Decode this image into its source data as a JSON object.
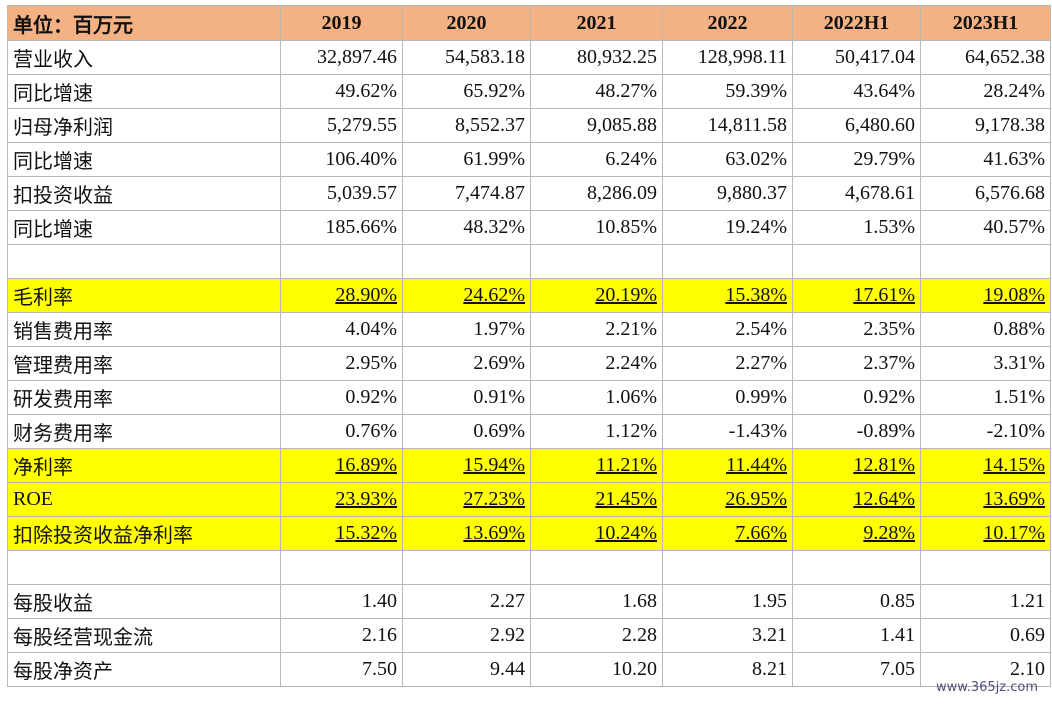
{
  "header": {
    "unit": "单位：百万元",
    "years": [
      "2019",
      "2020",
      "2021",
      "2022",
      "2022H1",
      "2023H1"
    ]
  },
  "rows": [
    {
      "label": "营业收入",
      "values": [
        "32,897.46",
        "54,583.18",
        "80,932.25",
        "128,998.11",
        "50,417.04",
        "64,652.38"
      ],
      "highlight": false
    },
    {
      "label": "同比增速",
      "values": [
        "49.62%",
        "65.92%",
        "48.27%",
        "59.39%",
        "43.64%",
        "28.24%"
      ],
      "highlight": false
    },
    {
      "label": "归母净利润",
      "values": [
        "5,279.55",
        "8,552.37",
        "9,085.88",
        "14,811.58",
        "6,480.60",
        "9,178.38"
      ],
      "highlight": false
    },
    {
      "label": "同比增速",
      "values": [
        "106.40%",
        "61.99%",
        "6.24%",
        "63.02%",
        "29.79%",
        "41.63%"
      ],
      "highlight": false
    },
    {
      "label": "扣投资收益",
      "values": [
        "5,039.57",
        "7,474.87",
        "8,286.09",
        "9,880.37",
        "4,678.61",
        "6,576.68"
      ],
      "highlight": false
    },
    {
      "label": "同比增速",
      "values": [
        "185.66%",
        "48.32%",
        "10.85%",
        "19.24%",
        "1.53%",
        "40.57%"
      ],
      "highlight": false
    },
    {
      "label": "",
      "values": [
        "",
        "",
        "",
        "",
        "",
        ""
      ],
      "highlight": false,
      "spacer": true
    },
    {
      "label": "毛利率",
      "values": [
        "28.90%",
        "24.62%",
        "20.19%",
        "15.38%",
        "17.61%",
        "19.08%"
      ],
      "highlight": true
    },
    {
      "label": "销售费用率",
      "values": [
        "4.04%",
        "1.97%",
        "2.21%",
        "2.54%",
        "2.35%",
        "0.88%"
      ],
      "highlight": false
    },
    {
      "label": "管理费用率",
      "values": [
        "2.95%",
        "2.69%",
        "2.24%",
        "2.27%",
        "2.37%",
        "3.31%"
      ],
      "highlight": false
    },
    {
      "label": "研发费用率",
      "values": [
        "0.92%",
        "0.91%",
        "1.06%",
        "0.99%",
        "0.92%",
        "1.51%"
      ],
      "highlight": false
    },
    {
      "label": "财务费用率",
      "values": [
        "0.76%",
        "0.69%",
        "1.12%",
        "-1.43%",
        "-0.89%",
        "-2.10%"
      ],
      "highlight": false
    },
    {
      "label": "净利率",
      "values": [
        "16.89%",
        "15.94%",
        "11.21%",
        "11.44%",
        "12.81%",
        "14.15%"
      ],
      "highlight": true
    },
    {
      "label": "ROE",
      "values": [
        "23.93%",
        "27.23%",
        "21.45%",
        "26.95%",
        "12.64%",
        "13.69%"
      ],
      "highlight": true
    },
    {
      "label": "扣除投资收益净利率",
      "values": [
        "15.32%",
        "13.69%",
        "10.24%",
        "7.66%",
        "9.28%",
        "10.17%"
      ],
      "highlight": true
    },
    {
      "label": "",
      "values": [
        "",
        "",
        "",
        "",
        "",
        ""
      ],
      "highlight": false,
      "spacer": true
    },
    {
      "label": "每股收益",
      "values": [
        "1.40",
        "2.27",
        "1.68",
        "1.95",
        "0.85",
        "1.21"
      ],
      "highlight": false
    },
    {
      "label": "每股经营现金流",
      "values": [
        "2.16",
        "2.92",
        "2.28",
        "3.21",
        "1.41",
        "0.69"
      ],
      "highlight": false
    },
    {
      "label": "每股净资产",
      "values": [
        "7.50",
        "9.44",
        "10.20",
        "8.21",
        "7.05",
        "2.10"
      ],
      "highlight": false
    }
  ],
  "watermark": "www.365jz.com"
}
